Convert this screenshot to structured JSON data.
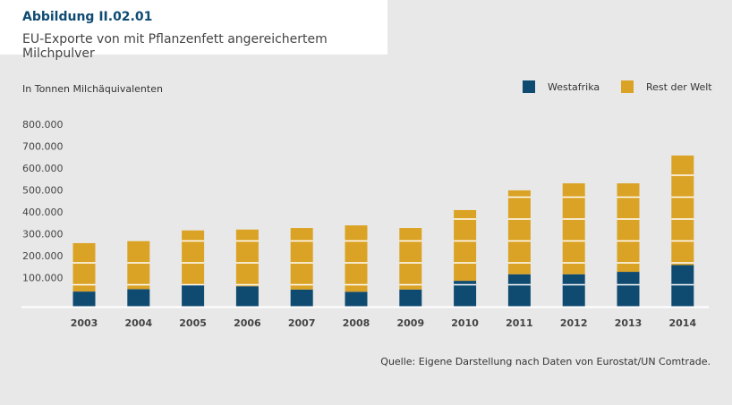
{
  "header": {
    "figure_number": "Abbildung II.02.01",
    "title": "EU-Exporte von mit Pflanzenfett angereichertem Milchpulver"
  },
  "source": "Quelle: Eigene Darstellung nach Daten von Eurostat/UN Comtrade.",
  "colors": {
    "westafrika": "#0f4a70",
    "rest": "#dba325"
  },
  "chart_data": {
    "type": "bar",
    "stacked": true,
    "title": "EU-Exporte von mit Pflanzenfett angereichertem Milchpulver",
    "ylabel": "In Tonnen Milchäquivalenten",
    "xlabel": "",
    "ylim": [
      0,
      800000
    ],
    "yticks": [
      100000,
      200000,
      300000,
      400000,
      500000,
      600000,
      700000,
      800000
    ],
    "ytick_labels": [
      "100.000",
      "200.000",
      "300.000",
      "400.000",
      "500.000",
      "600.000",
      "700.000",
      "800.000"
    ],
    "legend_position": "top-right",
    "categories": [
      "2003",
      "2004",
      "2005",
      "2006",
      "2007",
      "2008",
      "2009",
      "2010",
      "2011",
      "2012",
      "2013",
      "2014"
    ],
    "series": [
      {
        "name": "Westafrika",
        "values": [
          69000,
          80000,
          98000,
          93000,
          78000,
          68000,
          78000,
          118000,
          148000,
          148000,
          159000,
          190000
        ]
      },
      {
        "name": "Rest der Welt",
        "values": [
          221000,
          219000,
          250000,
          259000,
          281000,
          303000,
          281000,
          323000,
          383000,
          415000,
          404000,
          500000
        ]
      }
    ]
  }
}
